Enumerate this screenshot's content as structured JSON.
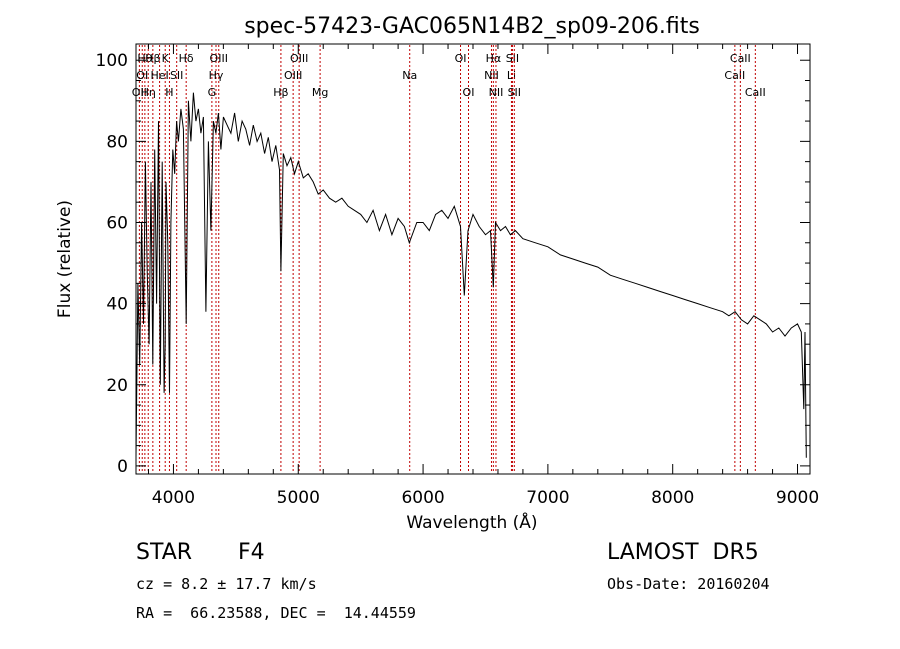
{
  "chart_data": {
    "type": "line",
    "title": "spec-57423-GAC065N14B2_sp09-206.fits",
    "xlabel": "Wavelength (Å)",
    "ylabel": "Flux (relative)",
    "xlim": [
      3700,
      9100
    ],
    "ylim": [
      -2,
      104
    ],
    "xticks": [
      4000,
      5000,
      6000,
      7000,
      8000,
      9000
    ],
    "xtick_labels": [
      "4000",
      "5000",
      "6000",
      "7000",
      "8000",
      "9000"
    ],
    "yticks": [
      0,
      20,
      40,
      60,
      80,
      100
    ],
    "ytick_labels": [
      "0",
      "20",
      "40",
      "60",
      "80",
      "100"
    ],
    "grid": false,
    "line_color": "#000000",
    "marker_color": "#c00000",
    "series": [
      {
        "x": [
          3700,
          3715,
          3730,
          3745,
          3760,
          3775,
          3790,
          3805,
          3820,
          3835,
          3850,
          3865,
          3880,
          3895,
          3910,
          3925,
          3934,
          3940,
          3955,
          3968,
          3980,
          3995,
          4010,
          4025,
          4040,
          4060,
          4080,
          4102,
          4120,
          4140,
          4160,
          4180,
          4200,
          4220,
          4240,
          4260,
          4280,
          4300,
          4320,
          4340,
          4360,
          4380,
          4400,
          4430,
          4460,
          4490,
          4520,
          4550,
          4580,
          4610,
          4640,
          4670,
          4700,
          4730,
          4760,
          4790,
          4820,
          4850,
          4861,
          4880,
          4910,
          4940,
          4970,
          5000,
          5040,
          5080,
          5120,
          5160,
          5200,
          5250,
          5300,
          5350,
          5400,
          5450,
          5500,
          5550,
          5600,
          5650,
          5700,
          5750,
          5800,
          5850,
          5890,
          5950,
          6000,
          6050,
          6100,
          6150,
          6200,
          6250,
          6300,
          6330,
          6360,
          6400,
          6450,
          6500,
          6540,
          6563,
          6580,
          6620,
          6660,
          6700,
          6740,
          6800,
          6900,
          7000,
          7100,
          7200,
          7300,
          7400,
          7500,
          7600,
          7700,
          7800,
          7900,
          8000,
          8100,
          8200,
          8300,
          8400,
          8450,
          8500,
          8550,
          8600,
          8650,
          8700,
          8750,
          8800,
          8850,
          8900,
          8950,
          9000,
          9030,
          9050,
          9060,
          9070
        ],
        "y": [
          2,
          45,
          25,
          60,
          35,
          75,
          48,
          30,
          70,
          25,
          78,
          40,
          85,
          20,
          75,
          18,
          30,
          70,
          55,
          18,
          60,
          78,
          72,
          85,
          80,
          88,
          83,
          35,
          90,
          80,
          92,
          85,
          88,
          82,
          86,
          38,
          80,
          58,
          85,
          82,
          87,
          78,
          86,
          84,
          82,
          87,
          80,
          85,
          83,
          79,
          84,
          80,
          82,
          77,
          81,
          75,
          79,
          73,
          48,
          77,
          74,
          76,
          72,
          75,
          71,
          72,
          70,
          67,
          68,
          66,
          65,
          66,
          64,
          63,
          62,
          60,
          63,
          58,
          62,
          57,
          61,
          59,
          55,
          60,
          60,
          58,
          62,
          63,
          61,
          64,
          59,
          42,
          58,
          62,
          59,
          57,
          58,
          44,
          60,
          58,
          59,
          57,
          58,
          56,
          55,
          54,
          52,
          51,
          50,
          49,
          47,
          46,
          45,
          44,
          43,
          42,
          41,
          40,
          39,
          38,
          37,
          38,
          36,
          35,
          37,
          36,
          35,
          33,
          34,
          32,
          34,
          35,
          33,
          14,
          33,
          2
        ]
      }
    ],
    "line_markers": [
      {
        "x": 3727,
        "label": "OII",
        "row": 3
      },
      {
        "x": 3750,
        "label": "OI",
        "row": 2
      },
      {
        "x": 3771,
        "label": "Hθ",
        "row": 1
      },
      {
        "x": 3798,
        "label": "Hη",
        "row": 3
      },
      {
        "x": 3835,
        "label": "Hβ",
        "row": 1
      },
      {
        "x": 3889,
        "label": "HeI",
        "row": 2
      },
      {
        "x": 3934,
        "label": "K",
        "row": 1
      },
      {
        "x": 3968,
        "label": "H",
        "row": 3
      },
      {
        "x": 4026,
        "label": "SII",
        "row": 2
      },
      {
        "x": 4102,
        "label": "Hδ",
        "row": 1
      },
      {
        "x": 4308,
        "label": "G",
        "row": 3
      },
      {
        "x": 4341,
        "label": "Hγ",
        "row": 2
      },
      {
        "x": 4363,
        "label": "OIII",
        "row": 1
      },
      {
        "x": 4861,
        "label": "Hβ",
        "row": 3
      },
      {
        "x": 4959,
        "label": "OIII",
        "row": 2
      },
      {
        "x": 5007,
        "label": "OIII",
        "row": 1
      },
      {
        "x": 5175,
        "label": "Mg",
        "row": 3
      },
      {
        "x": 5893,
        "label": "Na",
        "row": 2
      },
      {
        "x": 6300,
        "label": "OI",
        "row": 1
      },
      {
        "x": 6364,
        "label": "OI",
        "row": 3
      },
      {
        "x": 6548,
        "label": "NII",
        "row": 2
      },
      {
        "x": 6563,
        "label": "Hα",
        "row": 1
      },
      {
        "x": 6584,
        "label": "NII",
        "row": 3
      },
      {
        "x": 6708,
        "label": "Li",
        "row": 2
      },
      {
        "x": 6716,
        "label": "SII",
        "row": 1
      },
      {
        "x": 6731,
        "label": "SII",
        "row": 3
      },
      {
        "x": 8498,
        "label": "CaII",
        "row": 2
      },
      {
        "x": 8542,
        "label": "CaII",
        "row": 1
      },
      {
        "x": 8662,
        "label": "CaII",
        "row": 3
      }
    ]
  },
  "info": {
    "class_label": "STAR",
    "subclass": "F4",
    "survey": "LAMOST  DR5",
    "cz": "cz = 8.2 ± 17.7 km/s",
    "obs_date": "Obs-Date: 20160204",
    "coords": "RA =  66.23588, DEC =  14.44559"
  }
}
